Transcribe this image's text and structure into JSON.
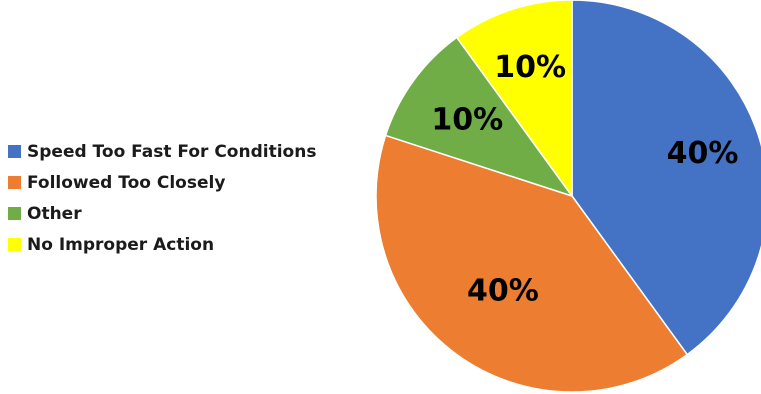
{
  "chart_data": {
    "type": "pie",
    "categories": [
      "Speed Too Fast For Conditions",
      "Followed Too Closely",
      "Other",
      "No Improper Action"
    ],
    "values": [
      40,
      40,
      10,
      10
    ],
    "data_labels": [
      "40%",
      "40%",
      "10%",
      "10%"
    ],
    "colors": [
      "#4472C4",
      "#ED7D31",
      "#70AD47",
      "#FFFF00"
    ],
    "legend_position": "left",
    "start_angle_deg": 0,
    "direction": "clockwise"
  }
}
